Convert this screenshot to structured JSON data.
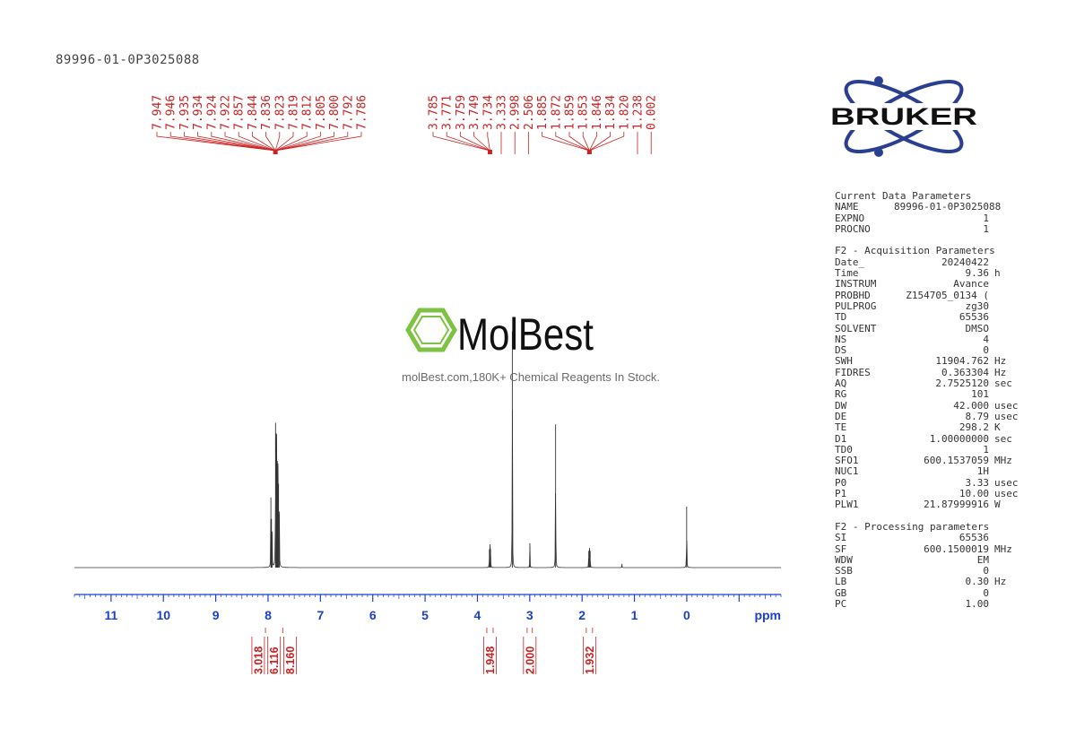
{
  "sample_id": "89996-01-0P3025088",
  "logo": {
    "text": "BRUKER",
    "colors": {
      "ring": "#2a3f8f",
      "text": "#111111"
    }
  },
  "watermark": {
    "brand": "MolBest",
    "subtitle": "molBest.com,180K+ Chemical Reagents In Stock.",
    "color": "#7dc242"
  },
  "colors": {
    "annotation": "#cc2222",
    "axis": "#1a3fd1",
    "trace": "#333333"
  },
  "parameters": [
    {
      "section": "Current Data Parameters",
      "rows": [
        {
          "key": "NAME",
          "value": "89996-01-0P3025088",
          "unit": ""
        },
        {
          "key": "EXPNO",
          "value": "1",
          "unit": ""
        },
        {
          "key": "PROCNO",
          "value": "1",
          "unit": ""
        }
      ]
    },
    {
      "section": "F2 - Acquisition Parameters",
      "rows": [
        {
          "key": "Date_",
          "value": "20240422",
          "unit": ""
        },
        {
          "key": "Time",
          "value": "9.36",
          "unit": "h"
        },
        {
          "key": "INSTRUM",
          "value": "Avance",
          "unit": ""
        },
        {
          "key": "PROBHD",
          "value": "Z154705_0134 (",
          "unit": ""
        },
        {
          "key": "PULPROG",
          "value": "zg30",
          "unit": ""
        },
        {
          "key": "TD",
          "value": "65536",
          "unit": ""
        },
        {
          "key": "SOLVENT",
          "value": "DMSO",
          "unit": ""
        },
        {
          "key": "NS",
          "value": "4",
          "unit": ""
        },
        {
          "key": "DS",
          "value": "0",
          "unit": ""
        },
        {
          "key": "SWH",
          "value": "11904.762",
          "unit": "Hz"
        },
        {
          "key": "FIDRES",
          "value": "0.363304",
          "unit": "Hz"
        },
        {
          "key": "AQ",
          "value": "2.7525120",
          "unit": "sec"
        },
        {
          "key": "RG",
          "value": "101",
          "unit": ""
        },
        {
          "key": "DW",
          "value": "42.000",
          "unit": "usec"
        },
        {
          "key": "DE",
          "value": "8.79",
          "unit": "usec"
        },
        {
          "key": "TE",
          "value": "298.2",
          "unit": "K"
        },
        {
          "key": "D1",
          "value": "1.00000000",
          "unit": "sec"
        },
        {
          "key": "TD0",
          "value": "1",
          "unit": ""
        },
        {
          "key": "SFO1",
          "value": "600.1537059",
          "unit": "MHz"
        },
        {
          "key": "NUC1",
          "value": "1H",
          "unit": ""
        },
        {
          "key": "P0",
          "value": "3.33",
          "unit": "usec"
        },
        {
          "key": "P1",
          "value": "10.00",
          "unit": "usec"
        },
        {
          "key": "PLW1",
          "value": "21.87999916",
          "unit": "W"
        }
      ]
    },
    {
      "section": "F2 - Processing parameters",
      "rows": [
        {
          "key": "SI",
          "value": "65536",
          "unit": ""
        },
        {
          "key": "SF",
          "value": "600.1500019",
          "unit": "MHz"
        },
        {
          "key": "WDW",
          "value": "EM",
          "unit": ""
        },
        {
          "key": "SSB",
          "value": "0",
          "unit": ""
        },
        {
          "key": "LB",
          "value": "0.30",
          "unit": "Hz"
        },
        {
          "key": "GB",
          "value": "0",
          "unit": ""
        },
        {
          "key": "PC",
          "value": "1.00",
          "unit": ""
        }
      ]
    }
  ],
  "chart_data": {
    "type": "line",
    "title": "",
    "xlabel": "ppm",
    "ylabel": "",
    "xlim": [
      11.7,
      -1.8
    ],
    "x_ticks": [
      11,
      10,
      9,
      8,
      7,
      6,
      5,
      4,
      3,
      2,
      1,
      0
    ],
    "peak_groups": [
      {
        "values": [
          "7.947",
          "7.946",
          "7.935",
          "7.934",
          "7.924",
          "7.922",
          "7.857",
          "7.844",
          "7.836",
          "7.823",
          "7.819",
          "7.812",
          "7.805",
          "7.800",
          "7.792",
          "7.786"
        ],
        "anchor": 7.86
      },
      {
        "values": [
          "3.785",
          "3.771",
          "3.759",
          "3.749",
          "3.734"
        ],
        "anchor": 3.76
      },
      {
        "values": [
          "3.333"
        ],
        "anchor": 3.333
      },
      {
        "values": [
          "2.998"
        ],
        "anchor": 2.998
      },
      {
        "values": [
          "2.506"
        ],
        "anchor": 2.506
      },
      {
        "values": [
          "1.885",
          "1.872",
          "1.859",
          "1.853",
          "1.846",
          "1.834",
          "1.820"
        ],
        "anchor": 1.86
      },
      {
        "values": [
          "1.238"
        ],
        "anchor": 1.238
      },
      {
        "values": [
          "0.002"
        ],
        "anchor": 0.002
      }
    ],
    "peaks": [
      {
        "ppm": 7.946,
        "intensity": 0.46
      },
      {
        "ppm": 7.935,
        "intensity": 0.32
      },
      {
        "ppm": 7.923,
        "intensity": 0.22
      },
      {
        "ppm": 7.857,
        "intensity": 0.95
      },
      {
        "ppm": 7.844,
        "intensity": 0.88
      },
      {
        "ppm": 7.836,
        "intensity": 0.75
      },
      {
        "ppm": 7.823,
        "intensity": 0.7
      },
      {
        "ppm": 7.812,
        "intensity": 0.66
      },
      {
        "ppm": 7.8,
        "intensity": 0.55
      },
      {
        "ppm": 7.786,
        "intensity": 0.35
      },
      {
        "ppm": 3.771,
        "intensity": 0.12
      },
      {
        "ppm": 3.759,
        "intensity": 0.14
      },
      {
        "ppm": 3.749,
        "intensity": 0.12
      },
      {
        "ppm": 3.333,
        "intensity": 1.55
      },
      {
        "ppm": 2.998,
        "intensity": 0.16
      },
      {
        "ppm": 2.506,
        "intensity": 0.94
      },
      {
        "ppm": 1.872,
        "intensity": 0.11
      },
      {
        "ppm": 1.859,
        "intensity": 0.13
      },
      {
        "ppm": 1.846,
        "intensity": 0.11
      },
      {
        "ppm": 1.238,
        "intensity": 0.025
      },
      {
        "ppm": 0.002,
        "intensity": 0.4
      }
    ],
    "integrals": [
      {
        "from": 8.05,
        "to": 7.72,
        "labels": [
          "3.018",
          "6.116",
          "8.160"
        ]
      },
      {
        "from": 3.82,
        "to": 3.7,
        "labels": [
          "1.948"
        ]
      },
      {
        "from": 3.05,
        "to": 2.95,
        "labels": [
          "2.000"
        ]
      },
      {
        "from": 1.92,
        "to": 1.8,
        "labels": [
          "1.932"
        ]
      }
    ]
  }
}
